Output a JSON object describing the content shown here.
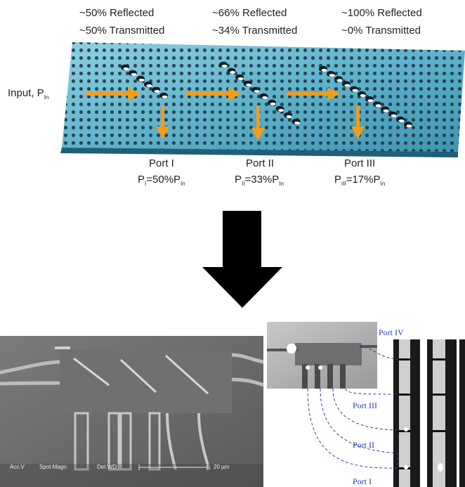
{
  "top_labels": [
    {
      "reflected": "~50% Reflected",
      "transmitted": "~50% Transmitted"
    },
    {
      "reflected": "~66% Reflected",
      "transmitted": "~34% Transmitted"
    },
    {
      "reflected": "~100% Reflected",
      "transmitted": "~0% Transmitted"
    }
  ],
  "input_label": "Input, P",
  "input_sub": "In",
  "ports": [
    {
      "name": "Port I",
      "p": "P",
      "sub": "I",
      "eq": "=50%P",
      "sub2": "In"
    },
    {
      "name": "Port II",
      "p": "P",
      "sub": "II",
      "eq": "=33%P",
      "sub2": "In"
    },
    {
      "name": "Port III",
      "p": "P",
      "sub": "III",
      "eq": "=17%P",
      "sub2": "In"
    }
  ],
  "sem_scale": {
    "acc_v": "Acc.V",
    "spot_magn": "Spot Magn",
    "det_wd": "Det WD",
    "scale_label": "20 µm"
  },
  "photo_ports": [
    "Port IV",
    "Port III",
    "Port II",
    "Port I"
  ],
  "colors": {
    "arrow": "#f39c1a",
    "slab_top": "#5fb3cc",
    "slab_side": "#1f5f7a",
    "port_line": "#2a3fb0",
    "big_arrow": "#000000"
  }
}
